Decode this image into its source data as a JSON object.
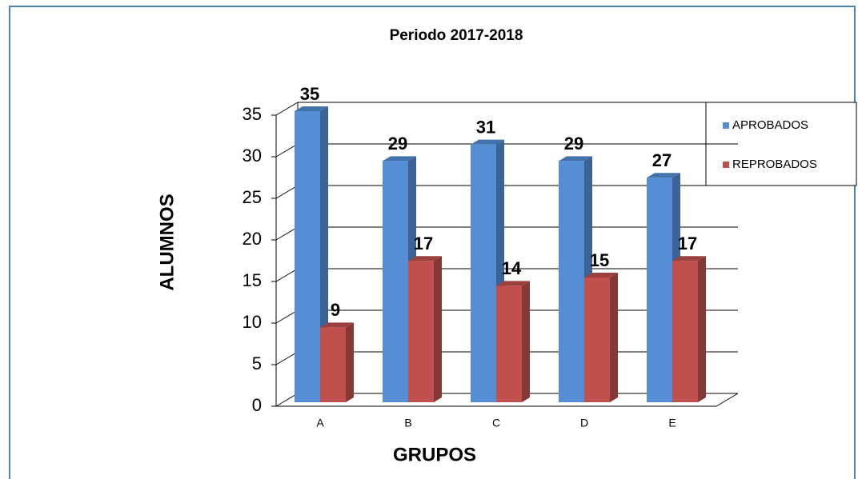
{
  "chart_data": {
    "type": "bar3d",
    "title": "Periodo 2017-2018",
    "x_label": "GRUPOS",
    "y_label": "ALUMNOS",
    "categories": [
      "A",
      "B",
      "C",
      "D",
      "E"
    ],
    "series": [
      {
        "name": "APROBADOS",
        "color": "#558ed5",
        "values": [
          35,
          29,
          31,
          29,
          27
        ]
      },
      {
        "name": "REPROBADOS",
        "color": "#c0504d",
        "values": [
          9,
          17,
          14,
          15,
          17
        ]
      }
    ],
    "ylim": [
      0,
      35
    ],
    "yticks": [
      0,
      5,
      10,
      15,
      20,
      25,
      30,
      35
    ],
    "grid": true,
    "legend": "right"
  }
}
